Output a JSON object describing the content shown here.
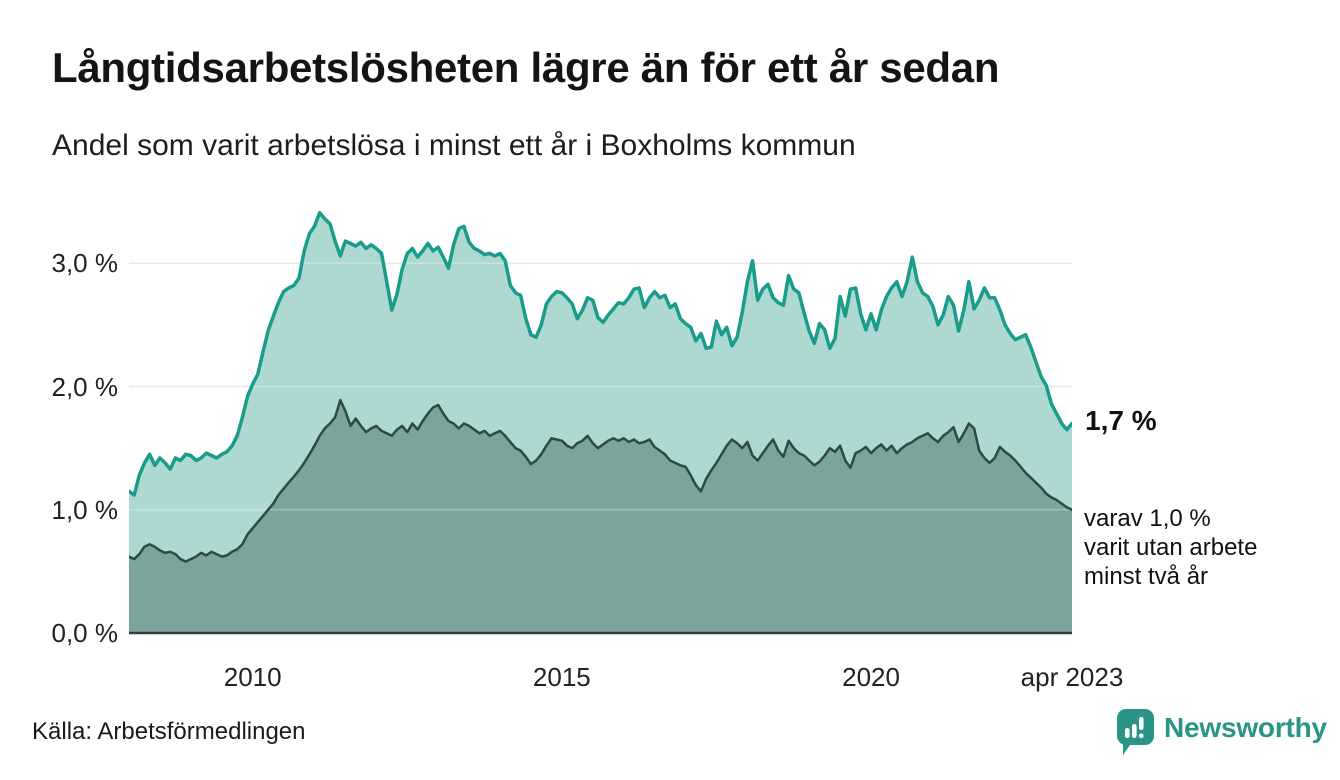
{
  "header": {
    "title": "Långtidsarbetslösheten lägre än för ett år sedan",
    "subtitle": "Andel som varit arbetslösa i minst ett år i Boxholms kommun"
  },
  "annotations": {
    "latest_value": "1,7 %",
    "two_year": {
      "lines": [
        "varav 1,0 %",
        "varit utan arbete",
        "minst två år"
      ]
    }
  },
  "footer": {
    "source": "Källa: Arbetsförmedlingen",
    "brand": "Newsworthy",
    "brand_icon": "speech-bubble-bar-chart-icon",
    "brand_color": "#2b9488"
  },
  "colors": {
    "background": "#ffffff",
    "title_text": "#141414",
    "axis_text": "#222222",
    "gridline": "#dedede",
    "baseline": "#3b3b3b",
    "series_one_year_line": "#199c8b",
    "series_one_year_fill": "#aed9d2",
    "series_two_year_line": "#2f4a44",
    "series_two_year_fill": "#7aa49c"
  },
  "chart_data": {
    "type": "area",
    "title": "Långtidsarbetslösheten lägre än för ett år sedan",
    "subtitle": "Andel som varit arbetslösa i minst ett år i Boxholms kommun",
    "unit": "percent of workforce",
    "frequency": "monthly",
    "x_start": "2008-01",
    "x_end": "2023-04",
    "ylim": [
      0,
      3.5
    ],
    "grid": "horizontal",
    "legend_position": "none",
    "yticks": [
      {
        "label": "0,0 %",
        "value": 0
      },
      {
        "label": "1,0 %",
        "value": 1
      },
      {
        "label": "2,0 %",
        "value": 2
      },
      {
        "label": "3,0 %",
        "value": 3
      }
    ],
    "xticks": [
      {
        "label": "2010",
        "month_index": 24
      },
      {
        "label": "2015",
        "month_index": 84
      },
      {
        "label": "2020",
        "month_index": 144
      },
      {
        "label": "apr 2023",
        "month_index": 183
      }
    ],
    "series": [
      {
        "name": "Arbetslösa minst ett år",
        "end_label": "1,7 %",
        "line_color": "#199c8b",
        "fill_color": "#aed9d2",
        "line_width": 3.5,
        "values": [
          1.15,
          1.12,
          1.28,
          1.38,
          1.45,
          1.36,
          1.42,
          1.38,
          1.33,
          1.42,
          1.4,
          1.45,
          1.44,
          1.4,
          1.42,
          1.46,
          1.44,
          1.42,
          1.45,
          1.47,
          1.52,
          1.6,
          1.75,
          1.92,
          2.02,
          2.1,
          2.28,
          2.45,
          2.57,
          2.68,
          2.77,
          2.8,
          2.82,
          2.88,
          3.1,
          3.24,
          3.3,
          3.41,
          3.36,
          3.32,
          3.18,
          3.06,
          3.18,
          3.16,
          3.14,
          3.17,
          3.12,
          3.15,
          3.12,
          3.08,
          2.85,
          2.62,
          2.75,
          2.95,
          3.08,
          3.12,
          3.05,
          3.1,
          3.16,
          3.1,
          3.13,
          3.05,
          2.96,
          3.15,
          3.28,
          3.3,
          3.17,
          3.12,
          3.1,
          3.07,
          3.08,
          3.06,
          3.08,
          3.02,
          2.82,
          2.76,
          2.74,
          2.55,
          2.42,
          2.4,
          2.5,
          2.67,
          2.73,
          2.77,
          2.76,
          2.72,
          2.67,
          2.55,
          2.62,
          2.72,
          2.7,
          2.56,
          2.52,
          2.58,
          2.63,
          2.68,
          2.67,
          2.72,
          2.79,
          2.8,
          2.64,
          2.72,
          2.77,
          2.72,
          2.74,
          2.64,
          2.67,
          2.55,
          2.51,
          2.48,
          2.37,
          2.43,
          2.31,
          2.32,
          2.53,
          2.42,
          2.48,
          2.33,
          2.4,
          2.6,
          2.85,
          3.02,
          2.7,
          2.79,
          2.83,
          2.72,
          2.68,
          2.66,
          2.9,
          2.79,
          2.76,
          2.6,
          2.45,
          2.35,
          2.51,
          2.46,
          2.31,
          2.39,
          2.73,
          2.57,
          2.79,
          2.8,
          2.59,
          2.46,
          2.59,
          2.46,
          2.62,
          2.73,
          2.8,
          2.85,
          2.73,
          2.85,
          3.05,
          2.85,
          2.76,
          2.73,
          2.65,
          2.5,
          2.58,
          2.73,
          2.66,
          2.45,
          2.62,
          2.85,
          2.63,
          2.7,
          2.8,
          2.72,
          2.72,
          2.62,
          2.5,
          2.43,
          2.38,
          2.4,
          2.42,
          2.32,
          2.2,
          2.08,
          2.01,
          1.86,
          1.78,
          1.7,
          1.65,
          1.7
        ]
      },
      {
        "name": "Arbetslösa minst två år",
        "end_label": "varav 1,0 % varit utan arbete minst två år",
        "line_color": "#2f4a44",
        "fill_color": "#7aa49c",
        "line_width": 2.5,
        "values": [
          0.62,
          0.6,
          0.64,
          0.7,
          0.72,
          0.7,
          0.67,
          0.65,
          0.66,
          0.64,
          0.6,
          0.58,
          0.6,
          0.62,
          0.65,
          0.63,
          0.66,
          0.64,
          0.62,
          0.63,
          0.66,
          0.68,
          0.72,
          0.8,
          0.85,
          0.9,
          0.95,
          1.0,
          1.05,
          1.12,
          1.17,
          1.22,
          1.27,
          1.32,
          1.38,
          1.45,
          1.52,
          1.6,
          1.66,
          1.7,
          1.75,
          1.89,
          1.8,
          1.68,
          1.74,
          1.68,
          1.63,
          1.66,
          1.68,
          1.64,
          1.62,
          1.6,
          1.65,
          1.68,
          1.63,
          1.7,
          1.65,
          1.72,
          1.78,
          1.83,
          1.85,
          1.78,
          1.72,
          1.7,
          1.66,
          1.7,
          1.68,
          1.65,
          1.62,
          1.64,
          1.6,
          1.62,
          1.64,
          1.6,
          1.55,
          1.5,
          1.48,
          1.43,
          1.37,
          1.4,
          1.45,
          1.52,
          1.58,
          1.57,
          1.56,
          1.52,
          1.5,
          1.54,
          1.56,
          1.6,
          1.54,
          1.5,
          1.53,
          1.56,
          1.58,
          1.56,
          1.58,
          1.55,
          1.57,
          1.54,
          1.55,
          1.57,
          1.51,
          1.48,
          1.45,
          1.4,
          1.38,
          1.36,
          1.35,
          1.28,
          1.2,
          1.15,
          1.25,
          1.32,
          1.38,
          1.45,
          1.52,
          1.57,
          1.54,
          1.5,
          1.55,
          1.44,
          1.4,
          1.46,
          1.52,
          1.57,
          1.48,
          1.43,
          1.56,
          1.5,
          1.46,
          1.44,
          1.4,
          1.36,
          1.39,
          1.44,
          1.5,
          1.47,
          1.52,
          1.4,
          1.34,
          1.46,
          1.48,
          1.51,
          1.46,
          1.5,
          1.53,
          1.48,
          1.52,
          1.46,
          1.5,
          1.53,
          1.55,
          1.58,
          1.6,
          1.62,
          1.58,
          1.55,
          1.6,
          1.63,
          1.67,
          1.55,
          1.62,
          1.7,
          1.66,
          1.48,
          1.42,
          1.38,
          1.42,
          1.51,
          1.47,
          1.44,
          1.4,
          1.35,
          1.3,
          1.26,
          1.22,
          1.18,
          1.13,
          1.1,
          1.08,
          1.05,
          1.02,
          1.0
        ]
      }
    ]
  }
}
